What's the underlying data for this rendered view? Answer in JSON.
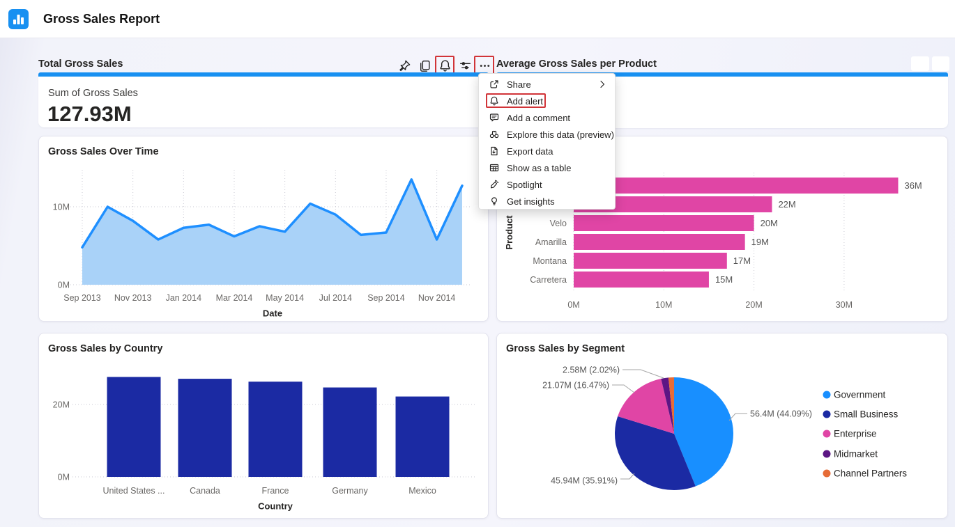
{
  "header": {
    "app_title": "Gross Sales Report"
  },
  "colors": {
    "accent_blue": "#1890f1",
    "highlight_red": "#d13438",
    "area_line": "#1e8fff",
    "area_fill": "#a9d2f8",
    "product_bar": "#e045a5",
    "country_bar": "#1b2aa3",
    "pie": [
      "#188fff",
      "#1b2aa3",
      "#e045a5",
      "#5c1684",
      "#e66c37"
    ]
  },
  "tiles": {
    "total_gross_sales": {
      "title": "Total Gross Sales",
      "card_label": "Sum of Gross Sales",
      "card_value": "127.93M"
    },
    "avg_per_product": {
      "title": "Average Gross Sales per Product"
    }
  },
  "toolbar": {
    "icons": [
      "pin",
      "copy",
      "alert-bell",
      "filter",
      "more-options"
    ],
    "highlighted": [
      "alert-bell",
      "more-options"
    ]
  },
  "menu": {
    "items": [
      {
        "label": "Share",
        "icon": "share",
        "has_submenu": true,
        "highlighted": false
      },
      {
        "label": "Add alert",
        "icon": "bell",
        "has_submenu": false,
        "highlighted": true
      },
      {
        "label": "Add a comment",
        "icon": "comment",
        "has_submenu": false,
        "highlighted": false
      },
      {
        "label": "Explore this data (preview)",
        "icon": "binoculars",
        "has_submenu": false,
        "highlighted": false
      },
      {
        "label": "Export data",
        "icon": "export",
        "has_submenu": false,
        "highlighted": false
      },
      {
        "label": "Show as a table",
        "icon": "table",
        "has_submenu": false,
        "highlighted": false
      },
      {
        "label": "Spotlight",
        "icon": "spotlight",
        "has_submenu": false,
        "highlighted": false
      },
      {
        "label": "Get insights",
        "icon": "lightbulb",
        "has_submenu": false,
        "highlighted": false
      }
    ]
  },
  "chart_data": [
    {
      "id": "gross_sales_over_time",
      "type": "area",
      "title": "Gross Sales Over Time",
      "x": [
        "Sep 2013",
        "Oct 2013",
        "Nov 2013",
        "Dec 2013",
        "Jan 2014",
        "Feb 2014",
        "Mar 2014",
        "Apr 2014",
        "May 2014",
        "Jun 2014",
        "Jul 2014",
        "Aug 2014",
        "Sep 2014",
        "Oct 2014",
        "Nov 2014",
        "Dec 2014"
      ],
      "values": [
        4.8,
        10.0,
        8.2,
        5.8,
        7.3,
        7.7,
        6.2,
        7.5,
        6.8,
        10.4,
        9.0,
        6.4,
        6.7,
        13.5,
        5.8,
        12.7
      ],
      "x_tick_labels": [
        "Sep 2013",
        "Nov 2013",
        "Jan 2014",
        "Mar 2014",
        "May 2014",
        "Jul 2014",
        "Sep 2014",
        "Nov 2014"
      ],
      "y_tick_labels": [
        "0M",
        "10M"
      ],
      "xlabel": "Date",
      "ylabel": "",
      "ylim": [
        0,
        15
      ],
      "grid": "dotted"
    },
    {
      "id": "avg_gross_sales_per_product",
      "type": "bar-horizontal",
      "title": "",
      "categories": [
        "",
        "",
        "Velo",
        "Amarilla",
        "Montana",
        "Carretera"
      ],
      "values": [
        36,
        22,
        20,
        19,
        17,
        15
      ],
      "value_labels": [
        "36M",
        "22M",
        "20M",
        "19M",
        "17M",
        "15M"
      ],
      "x_tick_labels": [
        "0M",
        "10M",
        "20M",
        "30M"
      ],
      "x_ticks": [
        0,
        10,
        20,
        30
      ],
      "xlabel": "",
      "ylabel": "Product",
      "xlim": [
        0,
        40
      ],
      "grid": "dotted",
      "note": "top two category labels occluded by open context menu"
    },
    {
      "id": "gross_sales_by_country",
      "type": "bar",
      "title": "Gross Sales by Country",
      "categories": [
        "United States ...",
        "Canada",
        "France",
        "Germany",
        "Mexico"
      ],
      "values": [
        27.6,
        27.1,
        26.3,
        24.7,
        22.2
      ],
      "y_tick_labels": [
        "0M",
        "20M"
      ],
      "y_ticks": [
        0,
        20
      ],
      "xlabel": "Country",
      "ylabel": "",
      "ylim": [
        0,
        29
      ],
      "grid": "dotted"
    },
    {
      "id": "gross_sales_by_segment",
      "type": "pie",
      "title": "Gross Sales by Segment",
      "legend_position": "right",
      "slices": [
        {
          "label": "Government",
          "value": 56.4,
          "pct": 44.09,
          "value_label": "56.4M (44.09%)"
        },
        {
          "label": "Small Business",
          "value": 45.94,
          "pct": 35.91,
          "value_label": "45.94M (35.91%)"
        },
        {
          "label": "Enterprise",
          "value": 21.07,
          "pct": 16.47,
          "value_label": "21.07M (16.47%)"
        },
        {
          "label": "Midmarket",
          "value": 2.58,
          "pct": 2.02,
          "value_label": "2.58M (2.02%)"
        },
        {
          "label": "Channel Partners",
          "value": null,
          "pct": 1.51,
          "value_label": ""
        }
      ]
    }
  ]
}
